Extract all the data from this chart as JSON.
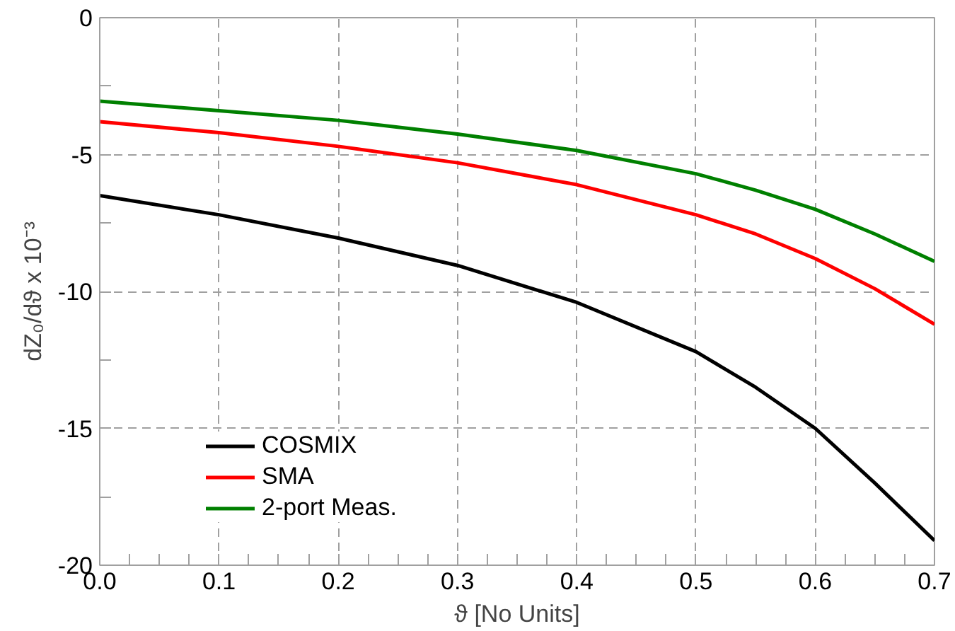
{
  "chart_data": {
    "type": "line",
    "xlabel": "ϑ [No Units]",
    "ylabel": "dZ₀/dϑ x 10⁻³",
    "x": [
      0.0,
      0.1,
      0.2,
      0.3,
      0.4,
      0.5,
      0.55,
      0.6,
      0.65,
      0.7
    ],
    "series": [
      {
        "name": "COSMIX",
        "color": "#000000",
        "values": [
          -6.5,
          -7.2,
          -8.05,
          -9.05,
          -10.4,
          -12.2,
          -13.5,
          -15.0,
          -17.0,
          -19.1
        ]
      },
      {
        "name": "SMA",
        "color": "#ff0000",
        "values": [
          -3.8,
          -4.2,
          -4.7,
          -5.3,
          -6.1,
          -7.2,
          -7.9,
          -8.8,
          -9.9,
          -11.2
        ]
      },
      {
        "name": "2-port Meas.",
        "color": "#008000",
        "values": [
          -3.05,
          -3.4,
          -3.75,
          -4.25,
          -4.85,
          -5.7,
          -6.3,
          -7.0,
          -7.9,
          -8.9
        ]
      }
    ],
    "xlim": [
      0.0,
      0.7
    ],
    "ylim": [
      -20,
      0
    ],
    "xticks": [
      {
        "value": 0.0,
        "label": "0.0"
      },
      0.1,
      0.2,
      0.3,
      0.4,
      0.5,
      0.6,
      0.7
    ],
    "yticks": [
      -20,
      -15,
      -10,
      -5,
      0
    ],
    "grid": true,
    "legend": "bottom left",
    "line_style": "solid",
    "marker": "none"
  }
}
